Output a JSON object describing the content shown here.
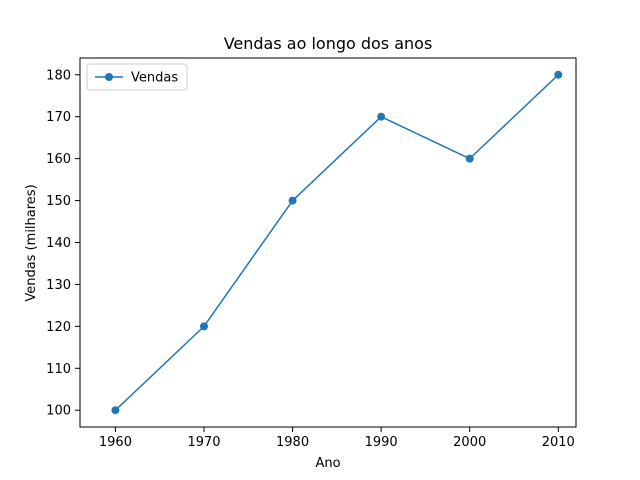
{
  "chart_data": {
    "type": "line",
    "title": "Vendas ao longo dos anos",
    "xlabel": "Ano",
    "ylabel": "Vendas (milhares)",
    "x": [
      1960,
      1970,
      1980,
      1990,
      2000,
      2010
    ],
    "series": [
      {
        "name": "Vendas",
        "values": [
          100,
          120,
          150,
          170,
          160,
          180
        ],
        "color": "#1f77b4",
        "marker": "circle"
      }
    ],
    "xticks": [
      1960,
      1970,
      1980,
      1990,
      2000,
      2010
    ],
    "yticks": [
      100,
      110,
      120,
      130,
      140,
      150,
      160,
      170,
      180
    ],
    "xlim": [
      1956,
      2012
    ],
    "ylim": [
      96,
      184
    ],
    "grid": false,
    "legend_position": "top-left"
  }
}
